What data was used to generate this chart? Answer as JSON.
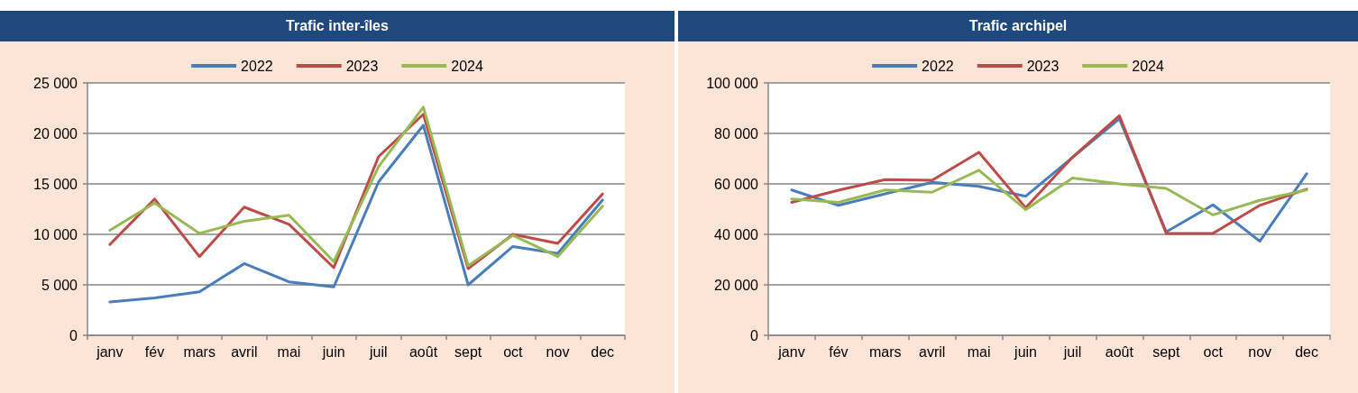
{
  "chart_data": [
    {
      "type": "line",
      "title": "Trafic inter-îles",
      "categories": [
        "janv",
        "fév",
        "mars",
        "avril",
        "mai",
        "juin",
        "juil",
        "août",
        "sept",
        "oct",
        "nov",
        "dec"
      ],
      "series": [
        {
          "name": "2022",
          "color": "#4a7ebb",
          "values": [
            3300,
            3700,
            4300,
            7100,
            5300,
            4800,
            15200,
            20800,
            5000,
            8800,
            8100,
            13400
          ]
        },
        {
          "name": "2023",
          "color": "#be4b48",
          "values": [
            9000,
            13500,
            7800,
            12700,
            11000,
            6700,
            17700,
            21900,
            6600,
            10000,
            9100,
            14000
          ]
        },
        {
          "name": "2024",
          "color": "#98b954",
          "values": [
            10400,
            13100,
            10100,
            11300,
            11900,
            7300,
            16700,
            22600,
            6900,
            9900,
            7800,
            12800
          ]
        }
      ],
      "ylim": [
        0,
        25000
      ],
      "yticks": [
        0,
        {
          "value": 5000,
          "label": "5 000"
        },
        {
          "value": 10000,
          "label": "10 000"
        },
        {
          "value": 15000,
          "label": "15 000"
        },
        {
          "value": 20000,
          "label": "20 000"
        },
        {
          "value": 25000,
          "label": "25 000"
        }
      ],
      "grid": "y",
      "legend": "top",
      "marker": "none",
      "line_style": "solid"
    },
    {
      "type": "line",
      "title": "Trafic archipel",
      "categories": [
        "janv",
        "fév",
        "mars",
        "avril",
        "mai",
        "juin",
        "juil",
        "août",
        "sept",
        "oct",
        "nov",
        "dec"
      ],
      "series": [
        {
          "name": "2022",
          "color": "#4a7ebb",
          "values": [
            57600,
            51500,
            56100,
            60600,
            59000,
            55100,
            70500,
            85800,
            41000,
            51700,
            37300,
            64000
          ]
        },
        {
          "name": "2023",
          "color": "#be4b48",
          "values": [
            52700,
            57500,
            61700,
            61400,
            72500,
            50500,
            70600,
            87000,
            40400,
            40400,
            51500,
            57900
          ]
        },
        {
          "name": "2024",
          "color": "#98b954",
          "values": [
            54000,
            52700,
            57600,
            56700,
            65400,
            49800,
            62300,
            60000,
            58200,
            47700,
            53500,
            57600
          ]
        }
      ],
      "ylim": [
        0,
        100000
      ],
      "yticks": [
        0,
        {
          "value": 20000,
          "label": "20 000"
        },
        {
          "value": 40000,
          "label": "40 000"
        },
        {
          "value": 60000,
          "label": "60 000"
        },
        {
          "value": 80000,
          "label": "80 000"
        },
        {
          "value": 100000,
          "label": "100 000"
        }
      ],
      "grid": "y",
      "legend": "top",
      "marker": "none",
      "line_style": "solid"
    }
  ]
}
